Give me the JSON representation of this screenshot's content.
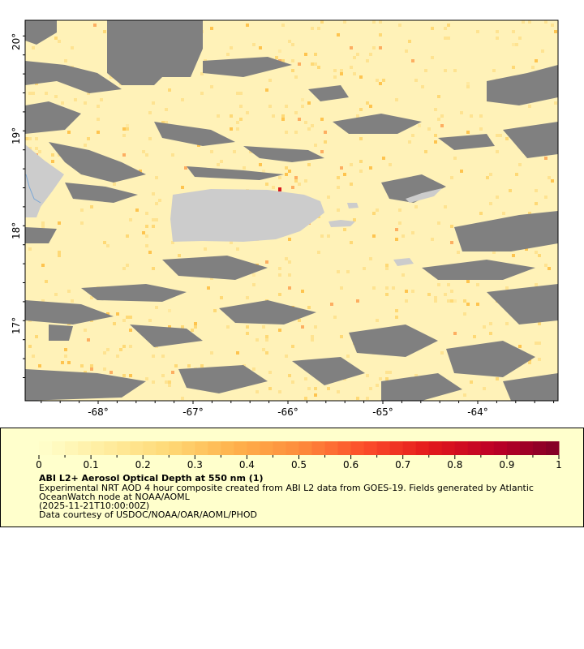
{
  "map": {
    "lat_ticks": [
      "17°",
      "18°",
      "19°",
      "20°"
    ],
    "lon_ticks": [
      "-68°",
      "-67°",
      "-66°",
      "-65°",
      "-64°"
    ],
    "colors": {
      "background_data": "#fff2b8",
      "cloud_mask": "#808080",
      "land": "#cccccc",
      "river": "#7aa7d6"
    }
  },
  "legend": {
    "colorbar_ticks": [
      "0",
      "0.1",
      "0.2",
      "0.3",
      "0.4",
      "0.5",
      "0.6",
      "0.7",
      "0.8",
      "0.9",
      "1"
    ],
    "colormap_stops": [
      "#ffffcc",
      "#ffeda0",
      "#fed976",
      "#feb24c",
      "#fd8d3c",
      "#fc4e2a",
      "#e31a1c",
      "#bd0026",
      "#800026"
    ],
    "title": "ABI L2+ Aerosol Optical Depth at 550 nm (1)",
    "description_line1": "Experimental NRT AOD 4 hour composite created from ABI L2 data from GOES-19. Fields generated by Atlantic",
    "description_line2": "OceanWatch node at NOAA/AOML",
    "time": "(2025-11-21T10:00:00Z)",
    "credit": "Data courtesy of USDOC/NOAA/OAR/AOML/PHOD"
  }
}
